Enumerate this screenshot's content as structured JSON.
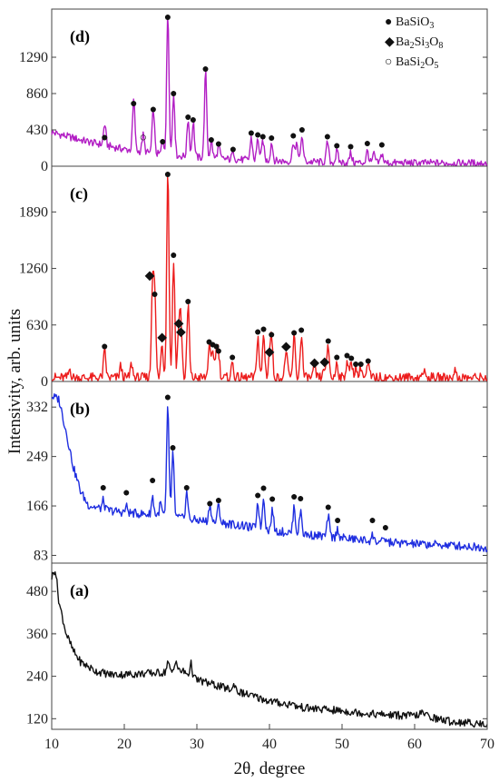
{
  "chart_data": [
    {
      "panel": "(d)",
      "type": "line",
      "color": "#b21ec4",
      "yticks": [
        0,
        430,
        860,
        1290
      ],
      "ylim": [
        0,
        1860
      ],
      "legend": [
        {
          "marker": "●",
          "base": "BaSiO",
          "sub": "3"
        },
        {
          "marker": "◆",
          "base": "Ba",
          "sub": "2",
          "mid": "Si",
          "sub2": "3",
          "end": "O",
          "sub3": "8"
        },
        {
          "marker": "○",
          "base": "BaSi",
          "sub": "2",
          "mid": "O",
          "sub2": "5"
        }
      ],
      "legend_position": "top-right",
      "series": {
        "baseline": [
          [
            10,
            400
          ],
          [
            15,
            290
          ],
          [
            20,
            200
          ],
          [
            25,
            140
          ],
          [
            30,
            105
          ],
          [
            35,
            80
          ],
          [
            40,
            65
          ],
          [
            45,
            52
          ],
          [
            50,
            45
          ],
          [
            55,
            40
          ],
          [
            60,
            38
          ],
          [
            65,
            36
          ],
          [
            70,
            35
          ]
        ],
        "peaks": [
          [
            17.3,
            250
          ],
          [
            21.3,
            600
          ],
          [
            22.6,
            200
          ],
          [
            24.0,
            530
          ],
          [
            25.3,
            180
          ],
          [
            26.0,
            1700
          ],
          [
            26.8,
            730
          ],
          [
            28.8,
            450
          ],
          [
            29.5,
            420
          ],
          [
            31.2,
            1020
          ],
          [
            32.0,
            200
          ],
          [
            33.0,
            150
          ],
          [
            35.0,
            100
          ],
          [
            37.5,
            260
          ],
          [
            38.4,
            260
          ],
          [
            39.1,
            240
          ],
          [
            40.3,
            220
          ],
          [
            43.3,
            240
          ],
          [
            43.8,
            200
          ],
          [
            44.5,
            300
          ],
          [
            48.0,
            240
          ],
          [
            49.3,
            130
          ],
          [
            51.2,
            110
          ],
          [
            53.5,
            140
          ],
          [
            54.4,
            100
          ],
          [
            55.5,
            110
          ]
        ]
      },
      "markers": [
        {
          "x": 17.3,
          "y": 330,
          "symbol": "●"
        },
        {
          "x": 21.3,
          "y": 730,
          "symbol": "●"
        },
        {
          "x": 22.6,
          "y": 330,
          "symbol": "○"
        },
        {
          "x": 24.0,
          "y": 660,
          "symbol": "●"
        },
        {
          "x": 25.3,
          "y": 280,
          "symbol": "●"
        },
        {
          "x": 26.0,
          "y": 1840,
          "symbol": "●"
        },
        {
          "x": 26.8,
          "y": 850,
          "symbol": "●"
        },
        {
          "x": 28.8,
          "y": 570,
          "symbol": "●"
        },
        {
          "x": 29.5,
          "y": 540,
          "symbol": "●"
        },
        {
          "x": 31.2,
          "y": 1140,
          "symbol": "●"
        },
        {
          "x": 32.0,
          "y": 300,
          "symbol": "●"
        },
        {
          "x": 33.0,
          "y": 250,
          "symbol": "●"
        },
        {
          "x": 35.0,
          "y": 190,
          "symbol": "●"
        },
        {
          "x": 37.5,
          "y": 380,
          "symbol": "●"
        },
        {
          "x": 38.4,
          "y": 360,
          "symbol": "●"
        },
        {
          "x": 39.1,
          "y": 340,
          "symbol": "●"
        },
        {
          "x": 40.3,
          "y": 320,
          "symbol": "●"
        },
        {
          "x": 43.3,
          "y": 350,
          "symbol": "●"
        },
        {
          "x": 44.5,
          "y": 420,
          "symbol": "●"
        },
        {
          "x": 48.0,
          "y": 340,
          "symbol": "●"
        },
        {
          "x": 49.3,
          "y": 230,
          "symbol": "●"
        },
        {
          "x": 51.2,
          "y": 220,
          "symbol": "●"
        },
        {
          "x": 53.5,
          "y": 260,
          "symbol": "●"
        },
        {
          "x": 55.5,
          "y": 240,
          "symbol": "●"
        }
      ]
    },
    {
      "panel": "(c)",
      "type": "line",
      "color": "#ec1c1c",
      "yticks": [
        0,
        630,
        1260,
        1890
      ],
      "ylim": [
        0,
        2400
      ],
      "series": {
        "baseline": [
          [
            10,
            40
          ],
          [
            20,
            40
          ],
          [
            30,
            40
          ],
          [
            40,
            40
          ],
          [
            50,
            40
          ],
          [
            60,
            40
          ],
          [
            70,
            40
          ]
        ],
        "peaks": [
          [
            12.5,
            100
          ],
          [
            17.3,
            300
          ],
          [
            19.5,
            130
          ],
          [
            21.0,
            160
          ],
          [
            23.9,
            1050
          ],
          [
            24.2,
            860
          ],
          [
            25.2,
            380
          ],
          [
            26.0,
            2340
          ],
          [
            26.8,
            1300
          ],
          [
            27.5,
            530
          ],
          [
            27.8,
            620
          ],
          [
            28.8,
            820
          ],
          [
            31.7,
            350
          ],
          [
            32.2,
            310
          ],
          [
            32.7,
            300
          ],
          [
            33.0,
            240
          ],
          [
            34.9,
            170
          ],
          [
            38.4,
            470
          ],
          [
            39.2,
            480
          ],
          [
            40.0,
            240
          ],
          [
            40.3,
            430
          ],
          [
            42.3,
            320
          ],
          [
            43.4,
            460
          ],
          [
            44.4,
            490
          ],
          [
            46.2,
            120
          ],
          [
            47.6,
            130
          ],
          [
            48.1,
            340
          ],
          [
            49.3,
            180
          ],
          [
            50.7,
            200
          ],
          [
            51.3,
            170
          ],
          [
            51.9,
            130
          ],
          [
            52.6,
            130
          ],
          [
            53.6,
            150
          ],
          [
            61.2,
            90
          ],
          [
            65.5,
            90
          ]
        ]
      },
      "markers": [
        {
          "x": 17.3,
          "y": 380,
          "symbol": "●"
        },
        {
          "x": 23.5,
          "y": 1170,
          "symbol": "◆"
        },
        {
          "x": 24.2,
          "y": 960,
          "symbol": "●"
        },
        {
          "x": 25.2,
          "y": 480,
          "symbol": "◆"
        },
        {
          "x": 26.0,
          "y": 2430,
          "symbol": "●"
        },
        {
          "x": 26.8,
          "y": 1400,
          "symbol": "●"
        },
        {
          "x": 27.5,
          "y": 640,
          "symbol": "◆"
        },
        {
          "x": 27.8,
          "y": 540,
          "symbol": "◆"
        },
        {
          "x": 28.8,
          "y": 880,
          "symbol": "●"
        },
        {
          "x": 31.7,
          "y": 430,
          "symbol": "●"
        },
        {
          "x": 32.2,
          "y": 400,
          "symbol": "●"
        },
        {
          "x": 32.7,
          "y": 380,
          "symbol": "●"
        },
        {
          "x": 33.0,
          "y": 330,
          "symbol": "●"
        },
        {
          "x": 34.9,
          "y": 260,
          "symbol": "●"
        },
        {
          "x": 38.4,
          "y": 540,
          "symbol": "●"
        },
        {
          "x": 39.2,
          "y": 570,
          "symbol": "●"
        },
        {
          "x": 40.0,
          "y": 320,
          "symbol": "◆"
        },
        {
          "x": 40.3,
          "y": 510,
          "symbol": "●"
        },
        {
          "x": 42.3,
          "y": 380,
          "symbol": "◆"
        },
        {
          "x": 43.4,
          "y": 530,
          "symbol": "●"
        },
        {
          "x": 44.4,
          "y": 560,
          "symbol": "●"
        },
        {
          "x": 46.2,
          "y": 200,
          "symbol": "◆"
        },
        {
          "x": 47.6,
          "y": 210,
          "symbol": "◆"
        },
        {
          "x": 48.1,
          "y": 440,
          "symbol": "●"
        },
        {
          "x": 49.3,
          "y": 260,
          "symbol": "●"
        },
        {
          "x": 50.7,
          "y": 280,
          "symbol": "●"
        },
        {
          "x": 51.3,
          "y": 250,
          "symbol": "●"
        },
        {
          "x": 51.9,
          "y": 180,
          "symbol": "●"
        },
        {
          "x": 52.6,
          "y": 180,
          "symbol": "●"
        },
        {
          "x": 53.6,
          "y": 220,
          "symbol": "●"
        }
      ]
    },
    {
      "panel": "(b)",
      "type": "line",
      "color": "#1f2ee0",
      "yticks": [
        83,
        166,
        249,
        332
      ],
      "ylim": [
        70,
        375
      ],
      "series": {
        "baseline": [
          [
            10,
            350
          ],
          [
            11,
            345
          ],
          [
            12,
            290
          ],
          [
            13,
            230
          ],
          [
            14,
            190
          ],
          [
            15,
            168
          ],
          [
            17,
            160
          ],
          [
            20,
            155
          ],
          [
            25,
            150
          ],
          [
            30,
            142
          ],
          [
            35,
            135
          ],
          [
            40,
            125
          ],
          [
            45,
            118
          ],
          [
            50,
            112
          ],
          [
            55,
            106
          ],
          [
            60,
            102
          ],
          [
            65,
            100
          ],
          [
            70,
            96
          ]
        ],
        "peaks": [
          [
            17.1,
            15
          ],
          [
            20.3,
            10
          ],
          [
            23.9,
            30
          ],
          [
            25.0,
            20
          ],
          [
            26.0,
            185
          ],
          [
            26.7,
            105
          ],
          [
            28.6,
            45
          ],
          [
            31.8,
            30
          ],
          [
            33.0,
            30
          ],
          [
            38.4,
            45
          ],
          [
            39.2,
            55
          ],
          [
            40.4,
            35
          ],
          [
            43.4,
            45
          ],
          [
            44.3,
            40
          ],
          [
            48.1,
            35
          ],
          [
            49.4,
            15
          ],
          [
            54.2,
            10
          ],
          [
            56.0,
            5
          ]
        ]
      },
      "markers": [
        {
          "x": 17.1,
          "y": 195,
          "symbol": "●"
        },
        {
          "x": 20.3,
          "y": 187,
          "symbol": "●"
        },
        {
          "x": 23.9,
          "y": 207,
          "symbol": "●"
        },
        {
          "x": 26.0,
          "y": 347,
          "symbol": "●"
        },
        {
          "x": 26.7,
          "y": 262,
          "symbol": "●"
        },
        {
          "x": 28.6,
          "y": 195,
          "symbol": "●"
        },
        {
          "x": 31.8,
          "y": 168,
          "symbol": "●"
        },
        {
          "x": 33.0,
          "y": 174,
          "symbol": "●"
        },
        {
          "x": 38.4,
          "y": 182,
          "symbol": "●"
        },
        {
          "x": 39.2,
          "y": 194,
          "symbol": "●"
        },
        {
          "x": 40.4,
          "y": 176,
          "symbol": "●"
        },
        {
          "x": 43.4,
          "y": 180,
          "symbol": "●"
        },
        {
          "x": 44.3,
          "y": 177,
          "symbol": "●"
        },
        {
          "x": 48.1,
          "y": 162,
          "symbol": "●"
        },
        {
          "x": 49.4,
          "y": 140,
          "symbol": "●"
        },
        {
          "x": 54.2,
          "y": 140,
          "symbol": "●"
        },
        {
          "x": 56.0,
          "y": 128,
          "symbol": "●"
        }
      ]
    },
    {
      "panel": "(a)",
      "type": "line",
      "color": "#111111",
      "yticks": [
        120,
        240,
        360,
        480
      ],
      "ylim": [
        90,
        560
      ],
      "series": {
        "baseline": [
          [
            10,
            520
          ],
          [
            10.5,
            545
          ],
          [
            11,
            450
          ],
          [
            12,
            360
          ],
          [
            13,
            310
          ],
          [
            14,
            280
          ],
          [
            16,
            255
          ],
          [
            18,
            245
          ],
          [
            20,
            245
          ],
          [
            25,
            250
          ],
          [
            28,
            255
          ],
          [
            30,
            230
          ],
          [
            35,
            200
          ],
          [
            40,
            170
          ],
          [
            45,
            150
          ],
          [
            50,
            142
          ],
          [
            55,
            132
          ],
          [
            60,
            128
          ],
          [
            61,
            135
          ],
          [
            63,
            120
          ],
          [
            65,
            112
          ],
          [
            70,
            104
          ]
        ],
        "peaks": [
          [
            26.0,
            30
          ],
          [
            27.1,
            35
          ],
          [
            29.2,
            35
          ],
          [
            35.2,
            20
          ],
          [
            43.0,
            10
          ]
        ]
      },
      "markers": []
    }
  ],
  "x_axis": {
    "ticks": [
      10,
      20,
      30,
      40,
      50,
      60,
      70
    ],
    "xlim": [
      10,
      70
    ],
    "label_prefix": "2",
    "label_theta": "θ",
    "label_suffix": ", degree"
  },
  "y_axis": {
    "label": "Intensivity, arb. units"
  }
}
